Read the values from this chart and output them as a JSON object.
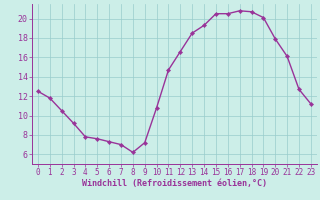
{
  "x": [
    0,
    1,
    2,
    3,
    4,
    5,
    6,
    7,
    8,
    9,
    10,
    11,
    12,
    13,
    14,
    15,
    16,
    17,
    18,
    19,
    20,
    21,
    22,
    23
  ],
  "y": [
    12.5,
    11.8,
    10.5,
    9.2,
    7.8,
    7.6,
    7.3,
    7.0,
    6.2,
    7.2,
    10.8,
    14.7,
    16.6,
    18.5,
    19.3,
    20.5,
    20.5,
    20.8,
    20.7,
    20.1,
    17.9,
    16.1,
    12.7,
    11.2
  ],
  "line_color": "#993399",
  "marker": "D",
  "marker_size": 2.2,
  "bg_color": "#cceee8",
  "grid_color": "#99cccc",
  "xlabel": "Windchill (Refroidissement éolien,°C)",
  "xlabel_color": "#993399",
  "xlim": [
    -0.5,
    23.5
  ],
  "ylim": [
    5.0,
    21.5
  ],
  "yticks": [
    6,
    8,
    10,
    12,
    14,
    16,
    18,
    20
  ],
  "xticks": [
    0,
    1,
    2,
    3,
    4,
    5,
    6,
    7,
    8,
    9,
    10,
    11,
    12,
    13,
    14,
    15,
    16,
    17,
    18,
    19,
    20,
    21,
    22,
    23
  ],
  "tick_color": "#993399",
  "spine_color": "#993399",
  "line_width": 1.0,
  "tick_fontsize": 5.5,
  "xlabel_fontsize": 6.0
}
